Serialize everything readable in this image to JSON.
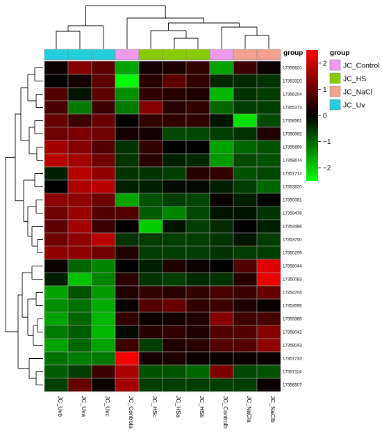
{
  "chart_data": {
    "type": "heatmap",
    "title": "",
    "color_scale": {
      "low": "#00ff00",
      "mid": "#000000",
      "high": "#ff0000",
      "range": [
        -2.5,
        2.5
      ],
      "ticks": [
        2,
        1,
        0,
        -1,
        -2
      ],
      "tick_labels": [
        "2",
        "1",
        "0",
        "−1",
        "−2"
      ]
    },
    "columns": [
      "JC_Uvb",
      "JC_Uva",
      "JC_Uvc",
      "JC_Controla",
      "JC_HSc",
      "JC_HSa",
      "JC_HSb",
      "JC_Controlb",
      "JC_NaCla",
      "JC_NaClb"
    ],
    "rows": [
      "17355620",
      "17353320",
      "17356204",
      "17355373",
      "17358561",
      "17350082",
      "17355659",
      "17358674",
      "17357712",
      "17353820",
      "17350081",
      "17359478",
      "17354488",
      "17353750",
      "17350259",
      "17358044",
      "17350083",
      "17354704",
      "17353595",
      "17359369",
      "17358042",
      "17358043",
      "17357733",
      "17357114",
      "17356507"
    ],
    "values": [
      [
        0.1,
        1.3,
        0.9,
        -1.6,
        0.2,
        0.3,
        0.5,
        -1.6,
        0.6,
        0.1
      ],
      [
        0.0,
        0.2,
        0.9,
        -2.5,
        0.4,
        0.9,
        0.5,
        -0.4,
        -0.4,
        -0.5
      ],
      [
        0.8,
        -0.2,
        0.9,
        -1.4,
        0.5,
        0.4,
        0.3,
        -1.8,
        -0.5,
        -0.6
      ],
      [
        0.7,
        -1.2,
        0.6,
        -1.2,
        1.3,
        0.4,
        0.5,
        -1.0,
        -0.6,
        -0.6
      ],
      [
        1.0,
        0.6,
        1.0,
        0.0,
        0.5,
        0.5,
        0.5,
        -0.2,
        -2.2,
        -0.7
      ],
      [
        1.1,
        1.2,
        1.1,
        0.2,
        0.2,
        -0.7,
        -0.7,
        -0.6,
        -0.5,
        0.3
      ],
      [
        1.6,
        1.3,
        0.8,
        -0.5,
        0.5,
        0.0,
        0.0,
        -1.6,
        -1.0,
        -0.8
      ],
      [
        1.8,
        1.6,
        1.1,
        -0.5,
        0.4,
        -0.3,
        -0.4,
        -1.5,
        -0.7,
        -0.8
      ],
      [
        -0.3,
        1.8,
        1.4,
        -0.5,
        -0.5,
        -0.6,
        0.4,
        0.5,
        -0.8,
        -0.7
      ],
      [
        0.0,
        1.7,
        1.8,
        -0.3,
        -0.3,
        -0.1,
        -0.1,
        -0.3,
        -0.6,
        -1.0
      ],
      [
        1.4,
        1.4,
        1.1,
        -1.6,
        -0.8,
        -0.6,
        -0.7,
        0.1,
        -0.3,
        0.0
      ],
      [
        1.1,
        1.5,
        0.8,
        0.8,
        -0.9,
        -1.3,
        -0.7,
        -0.2,
        -0.2,
        -0.5
      ],
      [
        0.9,
        1.6,
        0.6,
        0.0,
        -2.0,
        -0.2,
        -0.6,
        -0.4,
        0.0,
        -0.3
      ],
      [
        1.1,
        1.4,
        1.8,
        -0.5,
        -0.6,
        -0.6,
        -0.6,
        -0.5,
        -0.2,
        -0.6
      ],
      [
        1.4,
        1.4,
        1.1,
        0.3,
        -0.6,
        -0.6,
        -0.6,
        -0.5,
        -0.6,
        -0.6
      ],
      [
        0.1,
        -1.0,
        -1.3,
        0.0,
        -0.3,
        0.3,
        0.1,
        0.0,
        0.8,
        2.2
      ],
      [
        -0.3,
        -1.9,
        -1.3,
        0.4,
        -0.5,
        -0.6,
        -0.4,
        -0.5,
        0.4,
        2.3
      ],
      [
        -1.6,
        -0.8,
        -1.5,
        0.3,
        0.5,
        0.4,
        0.5,
        0.7,
        0.6,
        1.0
      ],
      [
        -1.4,
        -1.1,
        -1.7,
        0.1,
        0.8,
        1.0,
        0.5,
        0.6,
        0.3,
        0.1
      ],
      [
        -1.6,
        -1.0,
        -1.8,
        0.5,
        0.1,
        0.2,
        0.3,
        1.3,
        0.6,
        0.7
      ],
      [
        -1.2,
        -0.9,
        -1.8,
        -0.1,
        0.4,
        0.5,
        0.3,
        0.8,
        0.8,
        1.3
      ],
      [
        -1.6,
        -1.0,
        -1.6,
        0.6,
        -0.6,
        0.3,
        0.4,
        0.8,
        0.8,
        1.4
      ],
      [
        -1.1,
        -1.2,
        -1.2,
        2.4,
        0.2,
        0.3,
        0.1,
        0.1,
        0.1,
        0.1
      ],
      [
        -0.9,
        -0.6,
        0.6,
        1.7,
        -0.8,
        -0.8,
        -1.0,
        1.2,
        -0.7,
        -0.8
      ],
      [
        -0.6,
        1.0,
        0.1,
        1.6,
        -0.6,
        -0.6,
        -0.6,
        -0.6,
        -0.6,
        0.1
      ]
    ],
    "annotation": {
      "title": "group",
      "column_groups": [
        "JC_Uv",
        "JC_Uv",
        "JC_Uv",
        "JC_Control",
        "JC_HS",
        "JC_HS",
        "JC_HS",
        "JC_Control",
        "JC_NaCl",
        "JC_NaCl"
      ],
      "legend": [
        {
          "name": "JC_Control",
          "color": "#ee99ee"
        },
        {
          "name": "JC_HS",
          "color": "#88cc00"
        },
        {
          "name": "JC_NaCl",
          "color": "#f4a090"
        },
        {
          "name": "JC_Uv",
          "color": "#22cddd"
        }
      ]
    },
    "legend_title": "group",
    "grid": true
  }
}
